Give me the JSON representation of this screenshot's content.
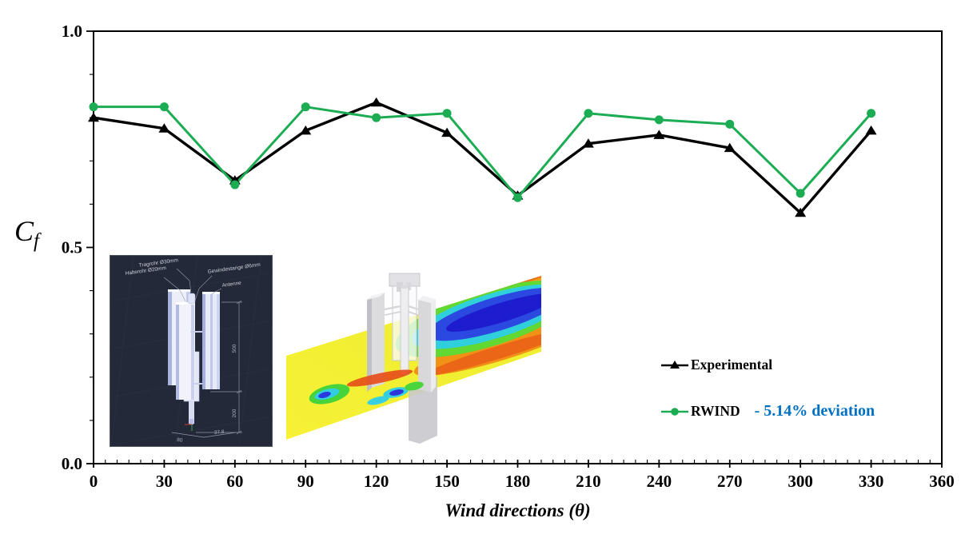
{
  "chart_data": {
    "type": "line",
    "title": "",
    "xlabel": "Wind directions (θ)",
    "ylabel": "Cf",
    "xlim": [
      0,
      360
    ],
    "ylim": [
      0.0,
      1.0
    ],
    "grid": false,
    "legend_position": "right-middle",
    "x": [
      0,
      30,
      60,
      90,
      120,
      150,
      180,
      210,
      240,
      270,
      300,
      330
    ],
    "x_major_ticks": [
      0,
      30,
      60,
      90,
      120,
      150,
      180,
      210,
      240,
      270,
      300,
      330,
      360
    ],
    "x_tick_labels": [
      "0",
      "30",
      "60",
      "90",
      "120",
      "150",
      "180",
      "210",
      "240",
      "270",
      "300",
      "330",
      "360"
    ],
    "x_minor_step": 5,
    "y_minor_step": 0.1,
    "y_major_ticks": [
      {
        "v": 0.0,
        "label": "0.0"
      },
      {
        "v": 0.5,
        "label": "0.5"
      },
      {
        "v": 1.0,
        "label": "1.0"
      }
    ],
    "series": [
      {
        "name": "Experimental",
        "color": "#000000",
        "marker": "triangle",
        "values": [
          0.8,
          0.775,
          0.655,
          0.77,
          0.835,
          0.765,
          0.62,
          0.74,
          0.76,
          0.73,
          0.58,
          0.77
        ]
      },
      {
        "name": "RWIND",
        "color": "#1CAD54",
        "marker": "circle",
        "values": [
          0.825,
          0.825,
          0.645,
          0.825,
          0.8,
          0.81,
          0.615,
          0.81,
          0.795,
          0.785,
          0.625,
          0.81
        ]
      }
    ]
  },
  "y_axis": {
    "symbol": "C",
    "subscript": "f"
  },
  "legend": {
    "experimental_label": "Experimental",
    "rwind_label": "RWIND",
    "deviation_text": "- 5.14% deviation",
    "deviation_color": "#0070C0"
  },
  "cad_inset": {
    "description": "CAD model of antenna mast",
    "background": "#232938",
    "label_tragrohr": "Tragrohr Ø30mm",
    "label_halterohr": "Halterohr Ø20mm",
    "label_gewindestange": "Gewindestange Ø6mm",
    "label_antenne": "Antenne",
    "dim_upper": "500",
    "dim_lower": "200",
    "dim_offset": "37.8",
    "dim_base": "80"
  },
  "cfd_inset": {
    "description": "CFD wind flow simulation around antenna model",
    "palette": {
      "freestream_yellow": "#F2EE2A",
      "wake_blue": "#2230D8",
      "wake_core_blue": "#1D1DCF",
      "transition_green": "#55D438",
      "transition_cyan": "#30CFDE",
      "high_gradient_orange": "#F08C16",
      "model_gray": "#DCDCDF"
    }
  }
}
